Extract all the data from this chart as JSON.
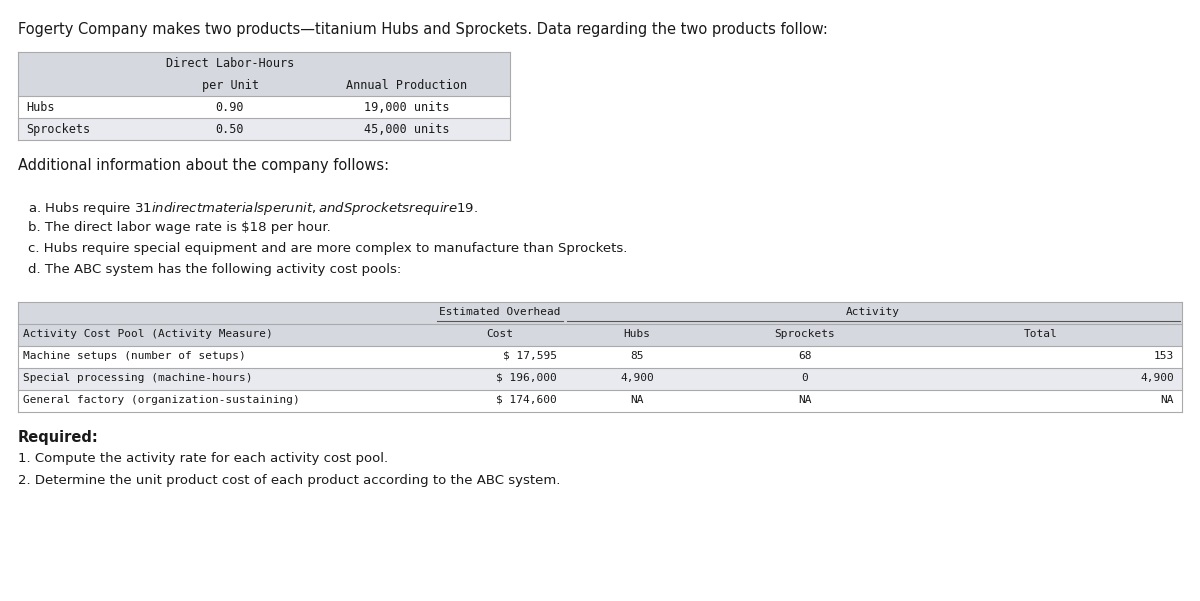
{
  "title": "Fogerty Company makes two products—titanium Hubs and Sprockets. Data regarding the two products follow:",
  "bg_color": "#ffffff",
  "table1": {
    "col1_header1": "Direct Labor-Hours",
    "col1_header2": "per Unit",
    "col2_header": "Annual Production",
    "rows": [
      [
        "Hubs",
        "0.90",
        "19,000 units"
      ],
      [
        "Sprockets",
        "0.50",
        "45,000 units"
      ]
    ],
    "header_bg": "#d6d8e0",
    "row_bg_odd": "#ffffff",
    "row_bg_even": "#e8eaef"
  },
  "additional_info_title": "Additional information about the company follows:",
  "additional_info": [
    "a. Hubs require $31 in direct materials per unit, and Sprockets require $19.",
    "b. The direct labor wage rate is $18 per hour.",
    "c. Hubs require special equipment and are more complex to manufacture than Sprockets.",
    "d. The ABC system has the following activity cost pools:"
  ],
  "table2": {
    "superheader_oh": "Estimated Overhead",
    "superheader_act": "Activity",
    "headers": [
      "Activity Cost Pool (Activity Measure)",
      "Cost",
      "Hubs",
      "Sprockets",
      "Total"
    ],
    "rows": [
      [
        "Machine setups (number of setups)",
        "$ 17,595",
        "85",
        "68",
        "153"
      ],
      [
        "Special processing (machine-hours)",
        "$ 196,000",
        "4,900",
        "0",
        "4,900"
      ],
      [
        "General factory (organization-sustaining)",
        "$ 174,600",
        "NA",
        "NA",
        "NA"
      ]
    ],
    "header_bg": "#d6d8e0",
    "row_bg": [
      "#ffffff",
      "#e8eaef",
      "#ffffff"
    ]
  },
  "required_title": "Required:",
  "required_items": [
    "1. Compute the activity rate for each activity cost pool.",
    "2. Determine the unit product cost of each product according to the ABC system."
  ]
}
